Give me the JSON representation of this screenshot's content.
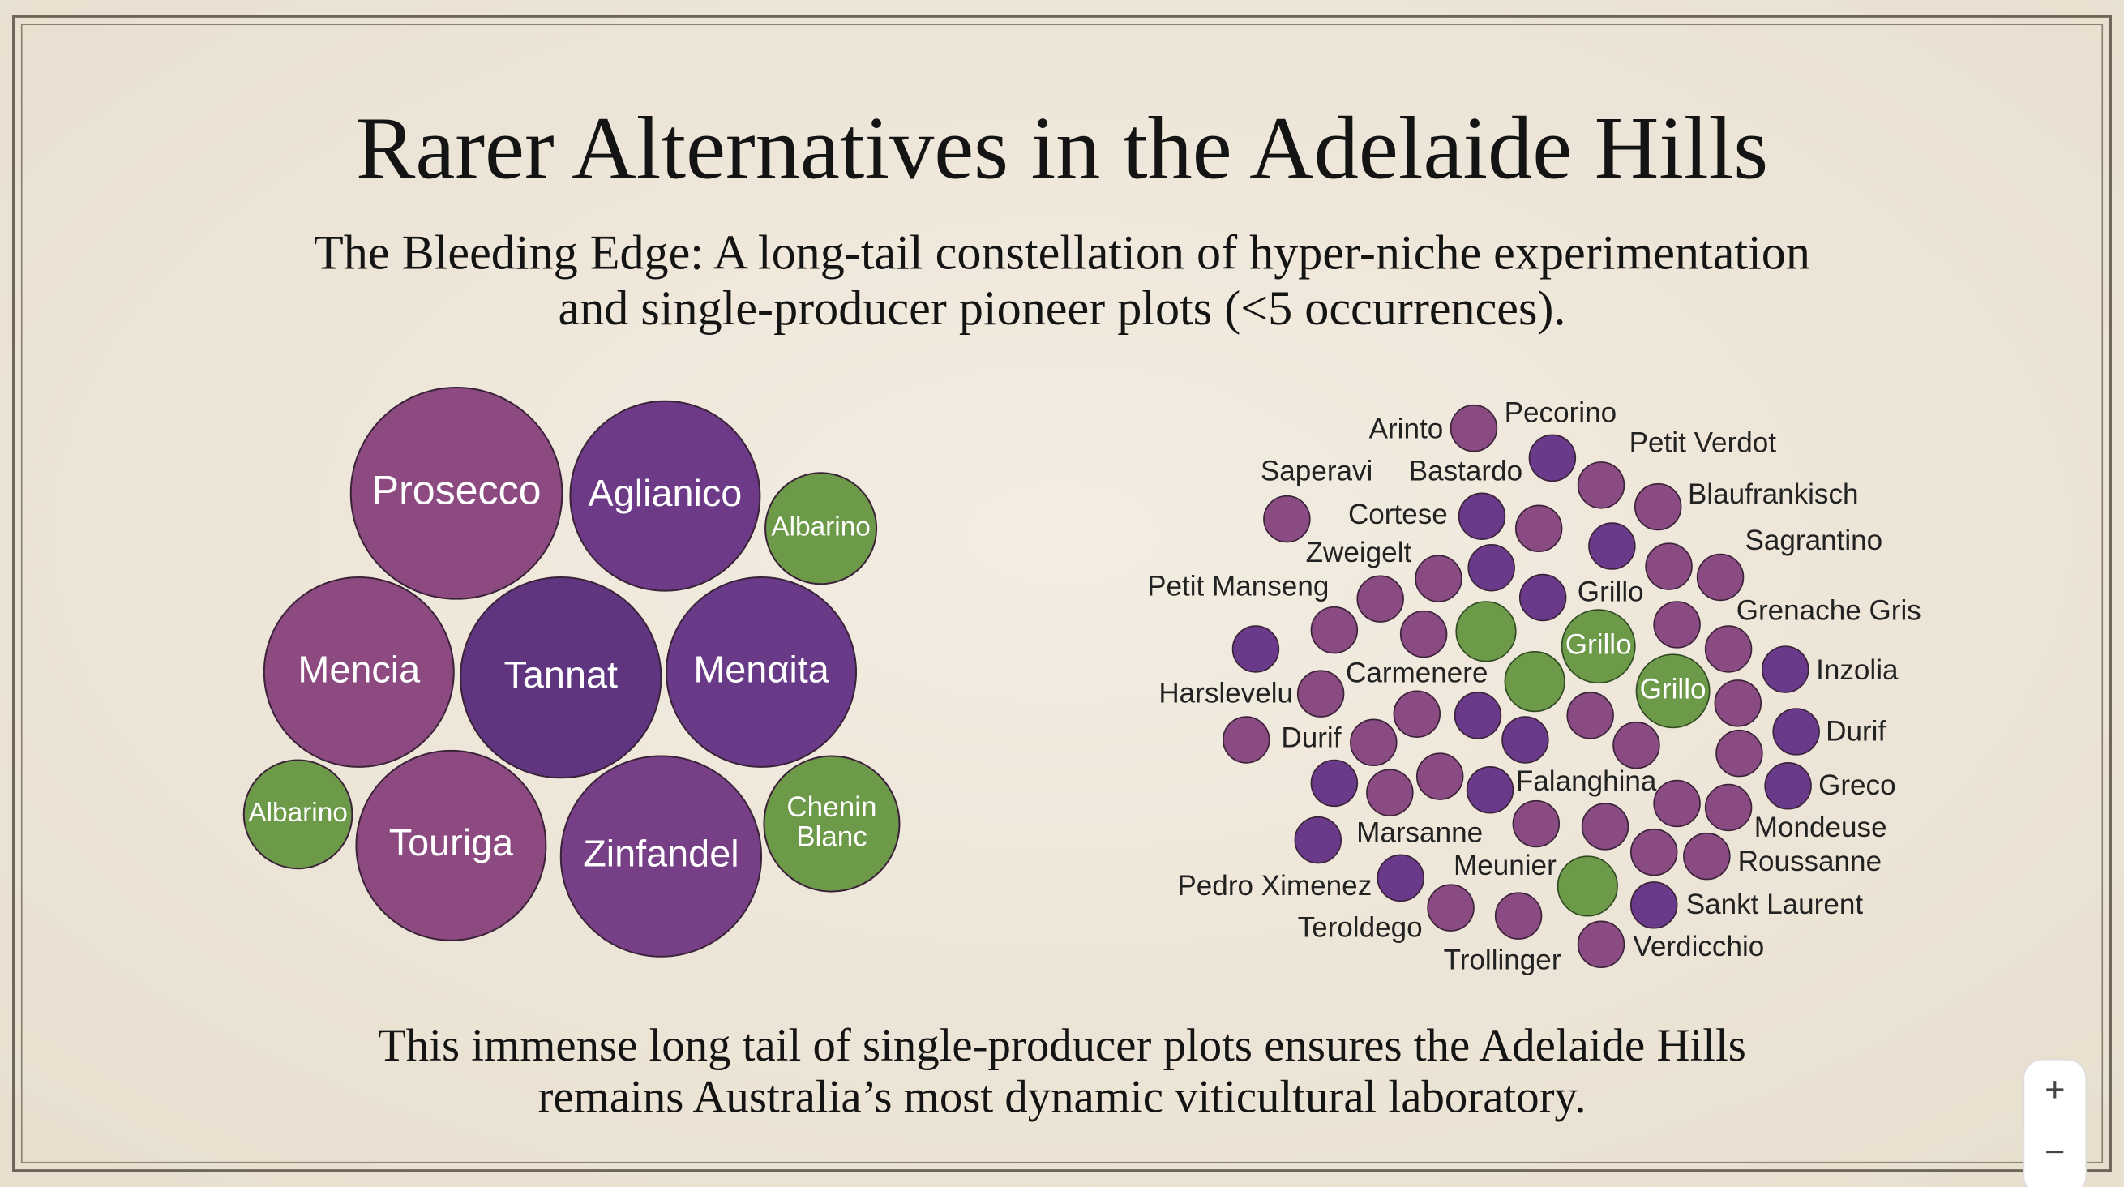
{
  "title": "Rarer Alternatives in the Adelaide Hills",
  "subtitle": [
    "The Bleeding Edge: A long-tail constellation of hyper-niche experimentation",
    "and single-producer pioneer plots (<5 occurrences)."
  ],
  "left_cluster": {
    "bubbles": [
      {
        "lines": [
          "Prosecco"
        ],
        "color": "#8c4a80"
      },
      {
        "lines": [
          "Aglianico"
        ],
        "color": "#6c3a86"
      },
      {
        "lines": [
          "Albarino"
        ],
        "color": "#6d9a48"
      },
      {
        "lines": [
          "Mencia"
        ],
        "color": "#8c4a80"
      },
      {
        "lines": [
          "Tannat"
        ],
        "color": "#5f3580"
      },
      {
        "lines": [
          "Menαita"
        ],
        "color": "#683a88"
      },
      {
        "lines": [
          "Albarino"
        ],
        "color": "#6d9a48"
      },
      {
        "lines": [
          "Touriga"
        ],
        "color": "#8c4a80"
      },
      {
        "lines": [
          "Zinfandel"
        ],
        "color": "#773f86"
      },
      {
        "lines": [
          "Chenin",
          "Blanc"
        ],
        "color": "#6d9a48"
      }
    ]
  },
  "right_cluster": {
    "labels": [
      "Arinto",
      "Pecorino",
      "Petit Verdot",
      "Saperavi",
      "Bastardo",
      "Blaufrankisch",
      "Cortese",
      "Sagrantino",
      "Zweigelt",
      "Petit Manseng",
      "Grillo",
      "Grenache Gris",
      "Grillo",
      "Inzolia",
      "Carmenere",
      "Harslevelu",
      "Grillo",
      "Durif",
      "Durif",
      "Falanghina",
      "Greco",
      "Mondeuse",
      "Marsanne",
      "Roussanne",
      "Meunier",
      "Pedro Ximenez",
      "Sankt Laurent",
      "Teroldego",
      "Verdicchio",
      "Trollinger"
    ]
  },
  "footer": [
    "This immense long tail of single-producer plots ensures the Adelaide Hills",
    "remains Australia’s most dynamic viticultural laboratory."
  ],
  "controls": {
    "zoom_in": "+",
    "zoom_out": "−"
  }
}
